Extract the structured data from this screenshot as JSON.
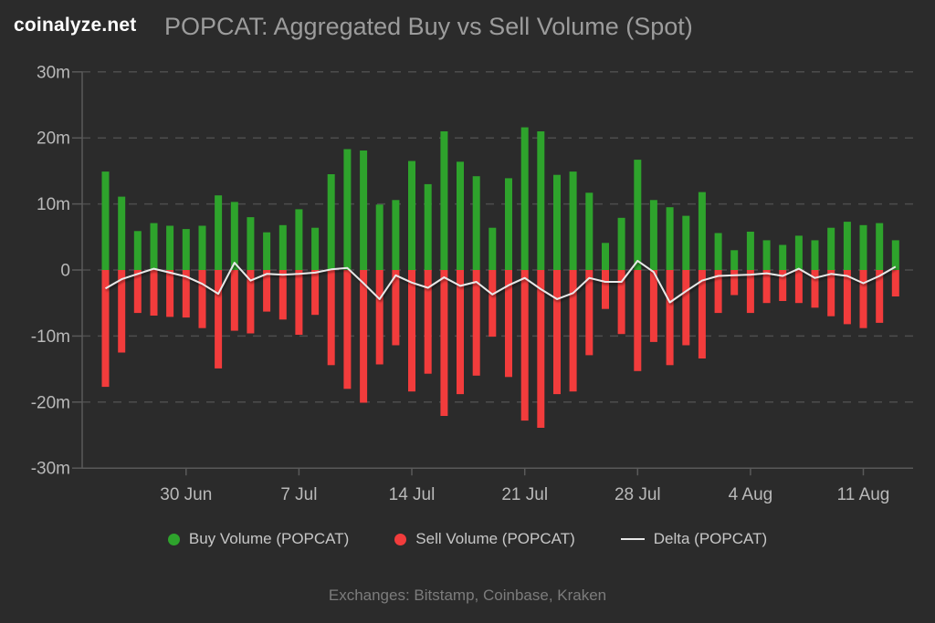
{
  "header": {
    "logo": "coinalyze.net",
    "title": "POPCAT: Aggregated Buy vs Sell Volume (Spot)"
  },
  "legend": [
    {
      "label": "Buy Volume (POPCAT)",
      "marker": "dot",
      "color": "#2ea32c"
    },
    {
      "label": "Sell Volume (POPCAT)",
      "marker": "dot",
      "color": "#f23c3c"
    },
    {
      "label": "Delta (POPCAT)",
      "marker": "line",
      "color": "#e8e8e8"
    }
  ],
  "footer": {
    "text": "Exchanges: Bitstamp, Coinbase, Kraken"
  },
  "colors": {
    "background": "#2b2b2b",
    "buy": "#2ea32c",
    "sell": "#f23c3c",
    "delta_line": "#e8e8e8",
    "gridline": "#4d4d4d",
    "axis": "#5a5a5a",
    "axis_label": "#b9b9b9",
    "title": "#9c9c9c",
    "legend_text": "#c7c7c7",
    "footer_text": "#7c7c7c"
  },
  "chart_data": {
    "type": "bar",
    "title": "POPCAT: Aggregated Buy vs Sell Volume (Spot)",
    "unit": "millions",
    "ylim": [
      -30,
      30
    ],
    "grid": true,
    "legend_position": "bottom",
    "y_tick_labels": [
      "30m",
      "20m",
      "10m",
      "0",
      "-10m",
      "-20m",
      "-30m"
    ],
    "y_tick_values": [
      30,
      20,
      10,
      0,
      -10,
      -20,
      -30
    ],
    "x_tick_labels": [
      "30 Jun",
      "7 Jul",
      "14 Jul",
      "21 Jul",
      "28 Jul",
      "4 Aug",
      "11 Aug"
    ],
    "x_tick_indices": [
      5,
      12,
      19,
      26,
      33,
      40,
      47
    ],
    "categories": [
      "25 Jun",
      "26 Jun",
      "27 Jun",
      "28 Jun",
      "29 Jun",
      "30 Jun",
      "1 Jul",
      "2 Jul",
      "3 Jul",
      "4 Jul",
      "5 Jul",
      "6 Jul",
      "7 Jul",
      "8 Jul",
      "9 Jul",
      "10 Jul",
      "11 Jul",
      "12 Jul",
      "13 Jul",
      "14 Jul",
      "15 Jul",
      "16 Jul",
      "17 Jul",
      "18 Jul",
      "19 Jul",
      "20 Jul",
      "21 Jul",
      "22 Jul",
      "23 Jul",
      "24 Jul",
      "25 Jul",
      "26 Jul",
      "27 Jul",
      "28 Jul",
      "29 Jul",
      "30 Jul",
      "31 Jul",
      "1 Aug",
      "2 Aug",
      "3 Aug",
      "4 Aug",
      "5 Aug",
      "6 Aug",
      "7 Aug",
      "8 Aug",
      "9 Aug",
      "10 Aug",
      "11 Aug",
      "12 Aug",
      "13 Aug"
    ],
    "series": [
      {
        "name": "Buy Volume (POPCAT)",
        "type": "bar",
        "direction": "up",
        "color": "#2ea32c",
        "values": [
          14.9,
          11.1,
          5.9,
          7.1,
          6.7,
          6.2,
          6.7,
          11.3,
          10.3,
          8.0,
          5.7,
          6.8,
          9.2,
          6.4,
          14.5,
          18.3,
          18.1,
          9.9,
          10.6,
          16.5,
          13.0,
          21.0,
          16.4,
          14.2,
          6.4,
          13.9,
          21.6,
          21.0,
          14.4,
          14.9,
          11.7,
          4.1,
          7.9,
          16.7,
          10.6,
          9.5,
          8.2,
          11.8,
          5.6,
          3.0,
          5.8,
          4.5,
          3.8,
          5.2,
          4.5,
          6.4,
          7.3,
          6.8,
          7.1,
          4.5
        ]
      },
      {
        "name": "Sell Volume (POPCAT)",
        "type": "bar",
        "direction": "down",
        "color": "#f23c3c",
        "values": [
          17.7,
          12.5,
          6.5,
          6.9,
          7.1,
          7.2,
          8.8,
          14.9,
          9.2,
          9.6,
          6.3,
          7.5,
          9.8,
          6.8,
          14.4,
          18.0,
          20.1,
          14.3,
          11.4,
          18.4,
          15.7,
          22.1,
          18.8,
          16.0,
          10.1,
          16.2,
          22.8,
          23.9,
          18.8,
          18.4,
          12.9,
          5.9,
          9.7,
          15.3,
          10.9,
          14.4,
          11.4,
          13.4,
          6.5,
          3.8,
          6.5,
          5.0,
          4.7,
          5.0,
          5.7,
          7.0,
          8.2,
          8.8,
          8.0,
          4.0
        ]
      },
      {
        "name": "Delta (POPCAT)",
        "type": "line",
        "color": "#e8e8e8",
        "values": [
          -2.8,
          -1.4,
          -0.6,
          0.2,
          -0.4,
          -1.0,
          -2.1,
          -3.6,
          1.1,
          -1.6,
          -0.6,
          -0.7,
          -0.6,
          -0.4,
          0.1,
          0.3,
          -2.0,
          -4.4,
          -0.8,
          -1.9,
          -2.7,
          -1.1,
          -2.4,
          -1.8,
          -3.7,
          -2.3,
          -1.2,
          -2.9,
          -4.4,
          -3.5,
          -1.2,
          -1.8,
          -1.8,
          1.4,
          -0.3,
          -4.9,
          -3.2,
          -1.6,
          -0.9,
          -0.8,
          -0.7,
          -0.5,
          -0.9,
          0.2,
          -1.2,
          -0.6,
          -0.9,
          -2.0,
          -0.9,
          0.5
        ]
      }
    ]
  }
}
